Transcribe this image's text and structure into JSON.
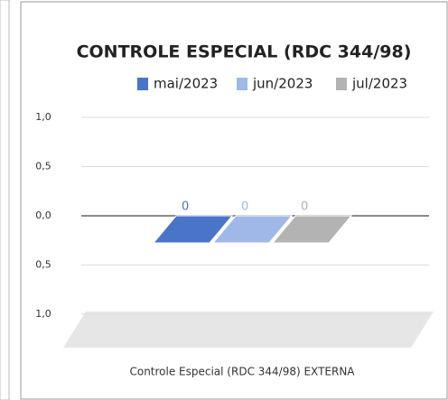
{
  "chart_data": {
    "type": "bar3d",
    "title": "CONTROLE ESPECIAL (RDC 344/98)",
    "categories": [
      "Controle Especial (RDC 344/98) EXTERNA"
    ],
    "series": [
      {
        "name": "mai/2023",
        "color": "#4a74c8",
        "values": [
          0
        ]
      },
      {
        "name": "jun/2023",
        "color": "#9fb8e8",
        "values": [
          0
        ]
      },
      {
        "name": "jul/2023",
        "color": "#b3b3b3",
        "values": [
          0
        ]
      }
    ],
    "ylim": [
      -1,
      1
    ],
    "yticks": [
      {
        "value": 1,
        "label": "1,0"
      },
      {
        "value": 0.5,
        "label": "0,5"
      },
      {
        "value": 0,
        "label": "0,0"
      },
      {
        "value": -0.5,
        "label": "0,5"
      },
      {
        "value": -1,
        "label": "1,0"
      }
    ],
    "grid": true,
    "legend": "top"
  }
}
